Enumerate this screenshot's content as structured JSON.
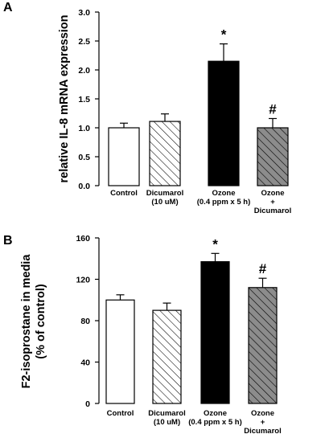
{
  "chart_data": [
    {
      "type": "bar",
      "panel": "A",
      "title": "",
      "ylabel": "relative IL-8 mRNA expression",
      "xlabel": "",
      "ylim": [
        0,
        3.0
      ],
      "yticks": [
        "0.0",
        "0.5",
        "1.0",
        "1.5",
        "2.0",
        "2.5",
        "3.0"
      ],
      "categories": [
        [
          "Control"
        ],
        [
          "Dicumarol",
          "(10 uM)"
        ],
        [
          "Ozone",
          "(0.4 ppm x 5 h)"
        ],
        [
          "Ozone",
          "+",
          "Dicumarol"
        ]
      ],
      "values": [
        1.0,
        1.11,
        2.15,
        1.0
      ],
      "errors": [
        0.08,
        0.13,
        0.3,
        0.16
      ],
      "fills": [
        "white",
        "hatched-white",
        "black",
        "hatched-gray"
      ],
      "annotations": [
        "",
        "",
        "*",
        "#"
      ],
      "grid": false
    },
    {
      "type": "bar",
      "panel": "B",
      "title": "",
      "ylabel": [
        "F2-isoprostane in media",
        "(% of control)"
      ],
      "xlabel": "",
      "ylim": [
        0,
        160
      ],
      "yticks": [
        "0",
        "40",
        "80",
        "120",
        "160"
      ],
      "categories": [
        [
          "Control"
        ],
        [
          "Dicumarol",
          "(10 uM)"
        ],
        [
          "Ozone",
          "(0.4 ppm x 5 h)"
        ],
        [
          "Ozone",
          "+",
          "Dicumarol"
        ]
      ],
      "values": [
        100,
        90,
        137,
        112
      ],
      "errors": [
        5,
        7,
        8,
        9
      ],
      "fills": [
        "white",
        "hatched-white",
        "black",
        "hatched-gray"
      ],
      "annotations": [
        "",
        "",
        "*",
        "#"
      ],
      "grid": false
    }
  ],
  "colors": {
    "black": "#000000",
    "white": "#ffffff",
    "hatch_gray_bg": "#8c8c8c"
  }
}
